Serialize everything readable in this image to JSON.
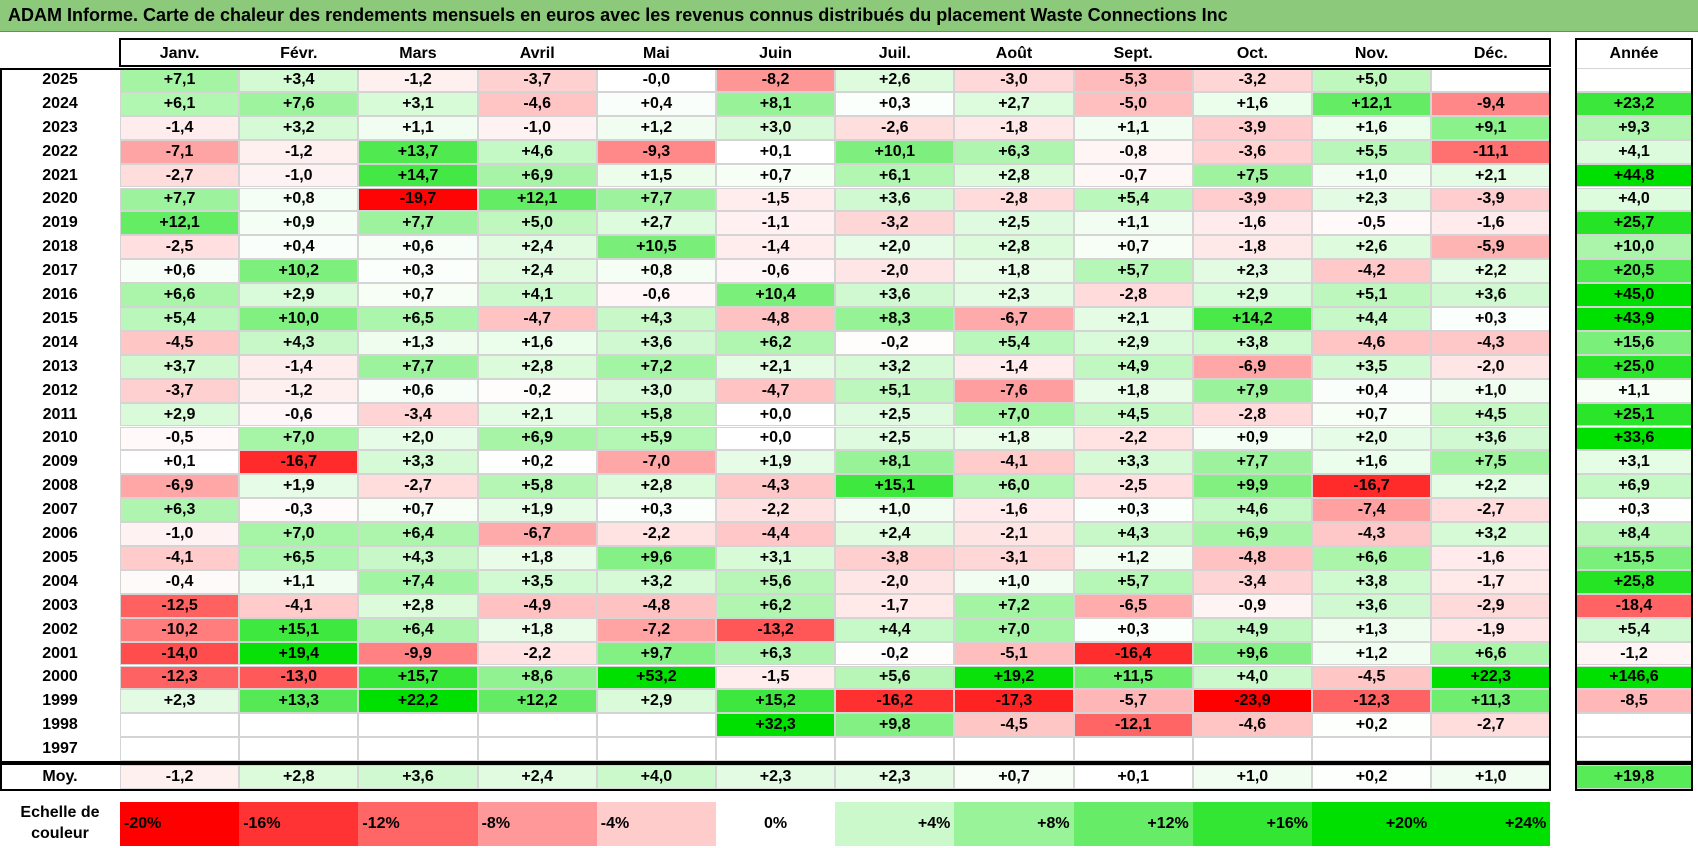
{
  "chart_data": {
    "type": "heatmap",
    "title": "ADAM Informe. Carte de chaleur des rendements mensuels en euros avec les revenus connus distribués du placement Waste Connections Inc",
    "columns": [
      "Janv.",
      "Févr.",
      "Mars",
      "Avril",
      "Mai",
      "Juin",
      "Juil.",
      "Août",
      "Sept.",
      "Oct.",
      "Nov.",
      "Déc."
    ],
    "year_column_label": "Année",
    "rows": [
      {
        "year": "2025",
        "values": [
          "+7,1",
          "+3,4",
          "-1,2",
          "-3,7",
          "-0,0",
          "-8,2",
          "+2,6",
          "-3,0",
          "-5,3",
          "-3,2",
          "+5,0",
          ""
        ],
        "annual": ""
      },
      {
        "year": "2024",
        "values": [
          "+6,1",
          "+7,6",
          "+3,1",
          "-4,6",
          "+0,4",
          "+8,1",
          "+0,3",
          "+2,7",
          "-5,0",
          "+1,6",
          "+12,1",
          "-9,4"
        ],
        "annual": "+23,2"
      },
      {
        "year": "2023",
        "values": [
          "-1,4",
          "+3,2",
          "+1,1",
          "-1,0",
          "+1,2",
          "+3,0",
          "-2,6",
          "-1,8",
          "+1,1",
          "-3,9",
          "+1,6",
          "+9,1"
        ],
        "annual": "+9,3"
      },
      {
        "year": "2022",
        "values": [
          "-7,1",
          "-1,2",
          "+13,7",
          "+4,6",
          "-9,3",
          "+0,1",
          "+10,1",
          "+6,3",
          "-0,8",
          "-3,6",
          "+5,5",
          "-11,1"
        ],
        "annual": "+4,1"
      },
      {
        "year": "2021",
        "values": [
          "-2,7",
          "-1,0",
          "+14,7",
          "+6,9",
          "+1,5",
          "+0,7",
          "+6,1",
          "+2,8",
          "-0,7",
          "+7,5",
          "+1,0",
          "+2,1"
        ],
        "annual": "+44,8"
      },
      {
        "year": "2020",
        "values": [
          "+7,7",
          "+0,8",
          "-19,7",
          "+12,1",
          "+7,7",
          "-1,5",
          "+3,6",
          "-2,8",
          "+5,4",
          "-3,9",
          "+2,3",
          "-3,9"
        ],
        "annual": "+4,0"
      },
      {
        "year": "2019",
        "values": [
          "+12,1",
          "+0,9",
          "+7,7",
          "+5,0",
          "+2,7",
          "-1,1",
          "-3,2",
          "+2,5",
          "+1,1",
          "-1,6",
          "-0,5",
          "-1,6"
        ],
        "annual": "+25,7"
      },
      {
        "year": "2018",
        "values": [
          "-2,5",
          "+0,4",
          "+0,6",
          "+2,4",
          "+10,5",
          "-1,4",
          "+2,0",
          "+2,8",
          "+0,7",
          "-1,8",
          "+2,6",
          "-5,9"
        ],
        "annual": "+10,0"
      },
      {
        "year": "2017",
        "values": [
          "+0,6",
          "+10,2",
          "+0,3",
          "+2,4",
          "+0,8",
          "-0,6",
          "-2,0",
          "+1,8",
          "+5,7",
          "+2,3",
          "-4,2",
          "+2,2"
        ],
        "annual": "+20,5"
      },
      {
        "year": "2016",
        "values": [
          "+6,6",
          "+2,9",
          "+0,7",
          "+4,1",
          "-0,6",
          "+10,4",
          "+3,6",
          "+2,3",
          "-2,8",
          "+2,9",
          "+5,1",
          "+3,6"
        ],
        "annual": "+45,0"
      },
      {
        "year": "2015",
        "values": [
          "+5,4",
          "+10,0",
          "+6,5",
          "-4,7",
          "+4,3",
          "-4,8",
          "+8,3",
          "-6,7",
          "+2,1",
          "+14,2",
          "+4,4",
          "+0,3"
        ],
        "annual": "+43,9"
      },
      {
        "year": "2014",
        "values": [
          "-4,5",
          "+4,3",
          "+1,3",
          "+1,6",
          "+3,6",
          "+6,2",
          "-0,2",
          "+5,4",
          "+2,9",
          "+3,8",
          "-4,6",
          "-4,3"
        ],
        "annual": "+15,6"
      },
      {
        "year": "2013",
        "values": [
          "+3,7",
          "-1,4",
          "+7,7",
          "+2,8",
          "+7,2",
          "+2,1",
          "+3,2",
          "-1,4",
          "+4,9",
          "-6,9",
          "+3,5",
          "-2,0"
        ],
        "annual": "+25,0"
      },
      {
        "year": "2012",
        "values": [
          "-3,7",
          "-1,2",
          "+0,6",
          "-0,2",
          "+3,0",
          "-4,7",
          "+5,1",
          "-7,6",
          "+1,8",
          "+7,9",
          "+0,4",
          "+1,0"
        ],
        "annual": "+1,1"
      },
      {
        "year": "2011",
        "values": [
          "+2,9",
          "-0,6",
          "-3,4",
          "+2,1",
          "+5,8",
          "+0,0",
          "+2,5",
          "+7,0",
          "+4,5",
          "-2,8",
          "+0,7",
          "+4,5"
        ],
        "annual": "+25,1"
      },
      {
        "year": "2010",
        "values": [
          "-0,5",
          "+7,0",
          "+2,0",
          "+6,9",
          "+5,9",
          "+0,0",
          "+2,5",
          "+1,8",
          "-2,2",
          "+0,9",
          "+2,0",
          "+3,6"
        ],
        "annual": "+33,6"
      },
      {
        "year": "2009",
        "values": [
          "+0,1",
          "-16,7",
          "+3,3",
          "+0,2",
          "-7,0",
          "+1,9",
          "+8,1",
          "-4,1",
          "+3,3",
          "+7,7",
          "+1,6",
          "+7,5"
        ],
        "annual": "+3,1"
      },
      {
        "year": "2008",
        "values": [
          "-6,9",
          "+1,9",
          "-2,7",
          "+5,8",
          "+2,8",
          "-4,3",
          "+15,1",
          "+6,0",
          "-2,5",
          "+9,9",
          "-16,7",
          "+2,2"
        ],
        "annual": "+6,9"
      },
      {
        "year": "2007",
        "values": [
          "+6,3",
          "-0,3",
          "+0,7",
          "+1,9",
          "+0,3",
          "-2,2",
          "+1,0",
          "-1,6",
          "+0,3",
          "+4,6",
          "-7,4",
          "-2,7"
        ],
        "annual": "+0,3"
      },
      {
        "year": "2006",
        "values": [
          "-1,0",
          "+7,0",
          "+6,4",
          "-6,7",
          "-2,2",
          "-4,4",
          "+2,4",
          "-2,1",
          "+4,3",
          "+6,9",
          "-4,3",
          "+3,2"
        ],
        "annual": "+8,4"
      },
      {
        "year": "2005",
        "values": [
          "-4,1",
          "+6,5",
          "+4,3",
          "+1,8",
          "+9,6",
          "+3,1",
          "-3,8",
          "-3,1",
          "+1,2",
          "-4,8",
          "+6,6",
          "-1,6"
        ],
        "annual": "+15,5"
      },
      {
        "year": "2004",
        "values": [
          "-0,4",
          "+1,1",
          "+7,4",
          "+3,5",
          "+3,2",
          "+5,6",
          "-2,0",
          "+1,0",
          "+5,7",
          "-3,4",
          "+3,8",
          "-1,7"
        ],
        "annual": "+25,8"
      },
      {
        "year": "2003",
        "values": [
          "-12,5",
          "-4,1",
          "+2,8",
          "-4,9",
          "-4,8",
          "+6,2",
          "-1,7",
          "+7,2",
          "-6,5",
          "-0,9",
          "+3,6",
          "-2,9"
        ],
        "annual": "-18,4"
      },
      {
        "year": "2002",
        "values": [
          "-10,2",
          "+15,1",
          "+6,4",
          "+1,8",
          "-7,2",
          "-13,2",
          "+4,4",
          "+7,0",
          "+0,3",
          "+4,9",
          "+1,3",
          "-1,9"
        ],
        "annual": "+5,4"
      },
      {
        "year": "2001",
        "values": [
          "-14,0",
          "+19,4",
          "-9,9",
          "-2,2",
          "+9,7",
          "+6,3",
          "-0,2",
          "-5,1",
          "-16,4",
          "+9,6",
          "+1,2",
          "+6,6"
        ],
        "annual": "-1,2"
      },
      {
        "year": "2000",
        "values": [
          "-12,3",
          "-13,0",
          "+15,7",
          "+8,6",
          "+53,2",
          "-1,5",
          "+5,6",
          "+19,2",
          "+11,5",
          "+4,0",
          "-4,5",
          "+22,3"
        ],
        "annual": "+146,6"
      },
      {
        "year": "1999",
        "values": [
          "+2,3",
          "+13,3",
          "+22,2",
          "+12,2",
          "+2,9",
          "+15,2",
          "-16,2",
          "-17,3",
          "-5,7",
          "-23,9",
          "-12,3",
          "+11,3"
        ],
        "annual": "-8,5"
      },
      {
        "year": "1998",
        "values": [
          "",
          "",
          "",
          "",
          "",
          "+32,3",
          "+9,8",
          "-4,5",
          "-12,1",
          "-4,6",
          "+0,2",
          "-2,7"
        ],
        "annual": ""
      },
      {
        "year": "1997",
        "values": [
          "",
          "",
          "",
          "",
          "",
          "",
          "",
          "",
          "",
          "",
          "",
          ""
        ],
        "annual": ""
      }
    ],
    "average": {
      "label": "Moy.",
      "values": [
        "-1,2",
        "+2,8",
        "+3,6",
        "+2,4",
        "+4,0",
        "+2,3",
        "+2,3",
        "+0,7",
        "+0,1",
        "+1,0",
        "+0,2",
        "+1,0"
      ],
      "annual": "+19,8"
    },
    "scale": {
      "label": "Echelle de couleur",
      "labels": [
        "-20%",
        "-16%",
        "-12%",
        "-8%",
        "-4%",
        "0%",
        "+4%",
        "+8%",
        "+12%",
        "+16%",
        "+20%",
        "+24%"
      ],
      "values": [
        -20,
        -16,
        -12,
        -8,
        -4,
        0,
        4,
        8,
        12,
        16,
        20,
        24
      ]
    },
    "colors": {
      "negative_max": "#ff0000",
      "neutral": "#ffffff",
      "positive_max": "#00e000",
      "title_bar": "#8cc97a"
    }
  }
}
